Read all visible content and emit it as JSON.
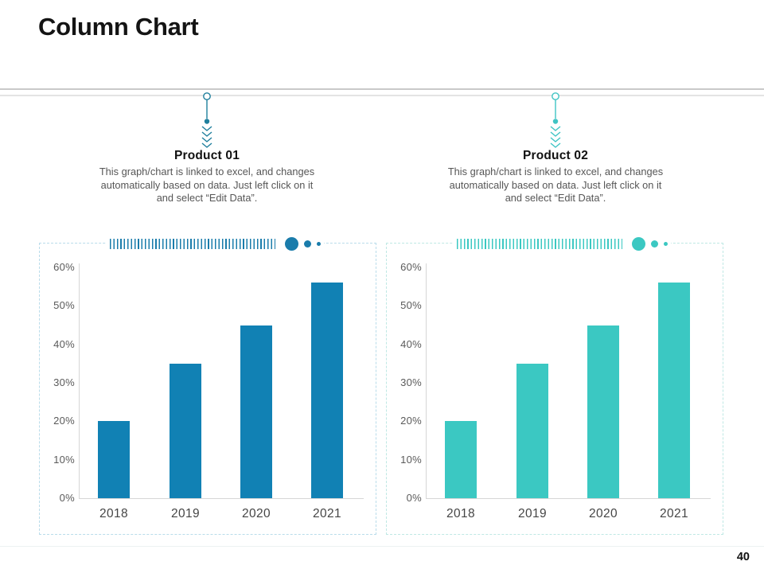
{
  "slide": {
    "title": "Column Chart",
    "page_number": "40"
  },
  "callouts": [
    {
      "title": "Product 01",
      "description": "This graph/chart is linked to excel, and changes automatically based on data. Just left click on it and select “Edit Data”.",
      "accent": "#1f7f9d"
    },
    {
      "title": "Product 02",
      "description": "This graph/chart is linked to excel, and changes automatically based on data. Just left click on it and select “Edit Data”.",
      "accent": "#3fc4c4"
    }
  ],
  "chart_data": [
    {
      "type": "bar",
      "title": "Product 01",
      "categories": [
        "2018",
        "2019",
        "2020",
        "2021"
      ],
      "values": [
        20,
        35,
        45,
        56
      ],
      "unit": "%",
      "xlabel": "",
      "ylabel": "",
      "ylim": [
        0,
        60
      ],
      "ytick_step": 10,
      "ytick_labels": [
        "0%",
        "10%",
        "20%",
        "30%",
        "40%",
        "50%",
        "60%"
      ],
      "grid": false,
      "legend": "none",
      "bar_color": "#1181b4",
      "accent_color": "#1a7cab",
      "panel_border_color": "#b9dcea"
    },
    {
      "type": "bar",
      "title": "Product 02",
      "categories": [
        "2018",
        "2019",
        "2020",
        "2021"
      ],
      "values": [
        20,
        35,
        45,
        56
      ],
      "unit": "%",
      "xlabel": "",
      "ylabel": "",
      "ylim": [
        0,
        60
      ],
      "ytick_step": 10,
      "ytick_labels": [
        "0%",
        "10%",
        "20%",
        "30%",
        "40%",
        "50%",
        "60%"
      ],
      "grid": false,
      "legend": "none",
      "bar_color": "#3bc8c2",
      "accent_color": "#3bc8c2",
      "panel_border_color": "#bfe8e4"
    }
  ]
}
